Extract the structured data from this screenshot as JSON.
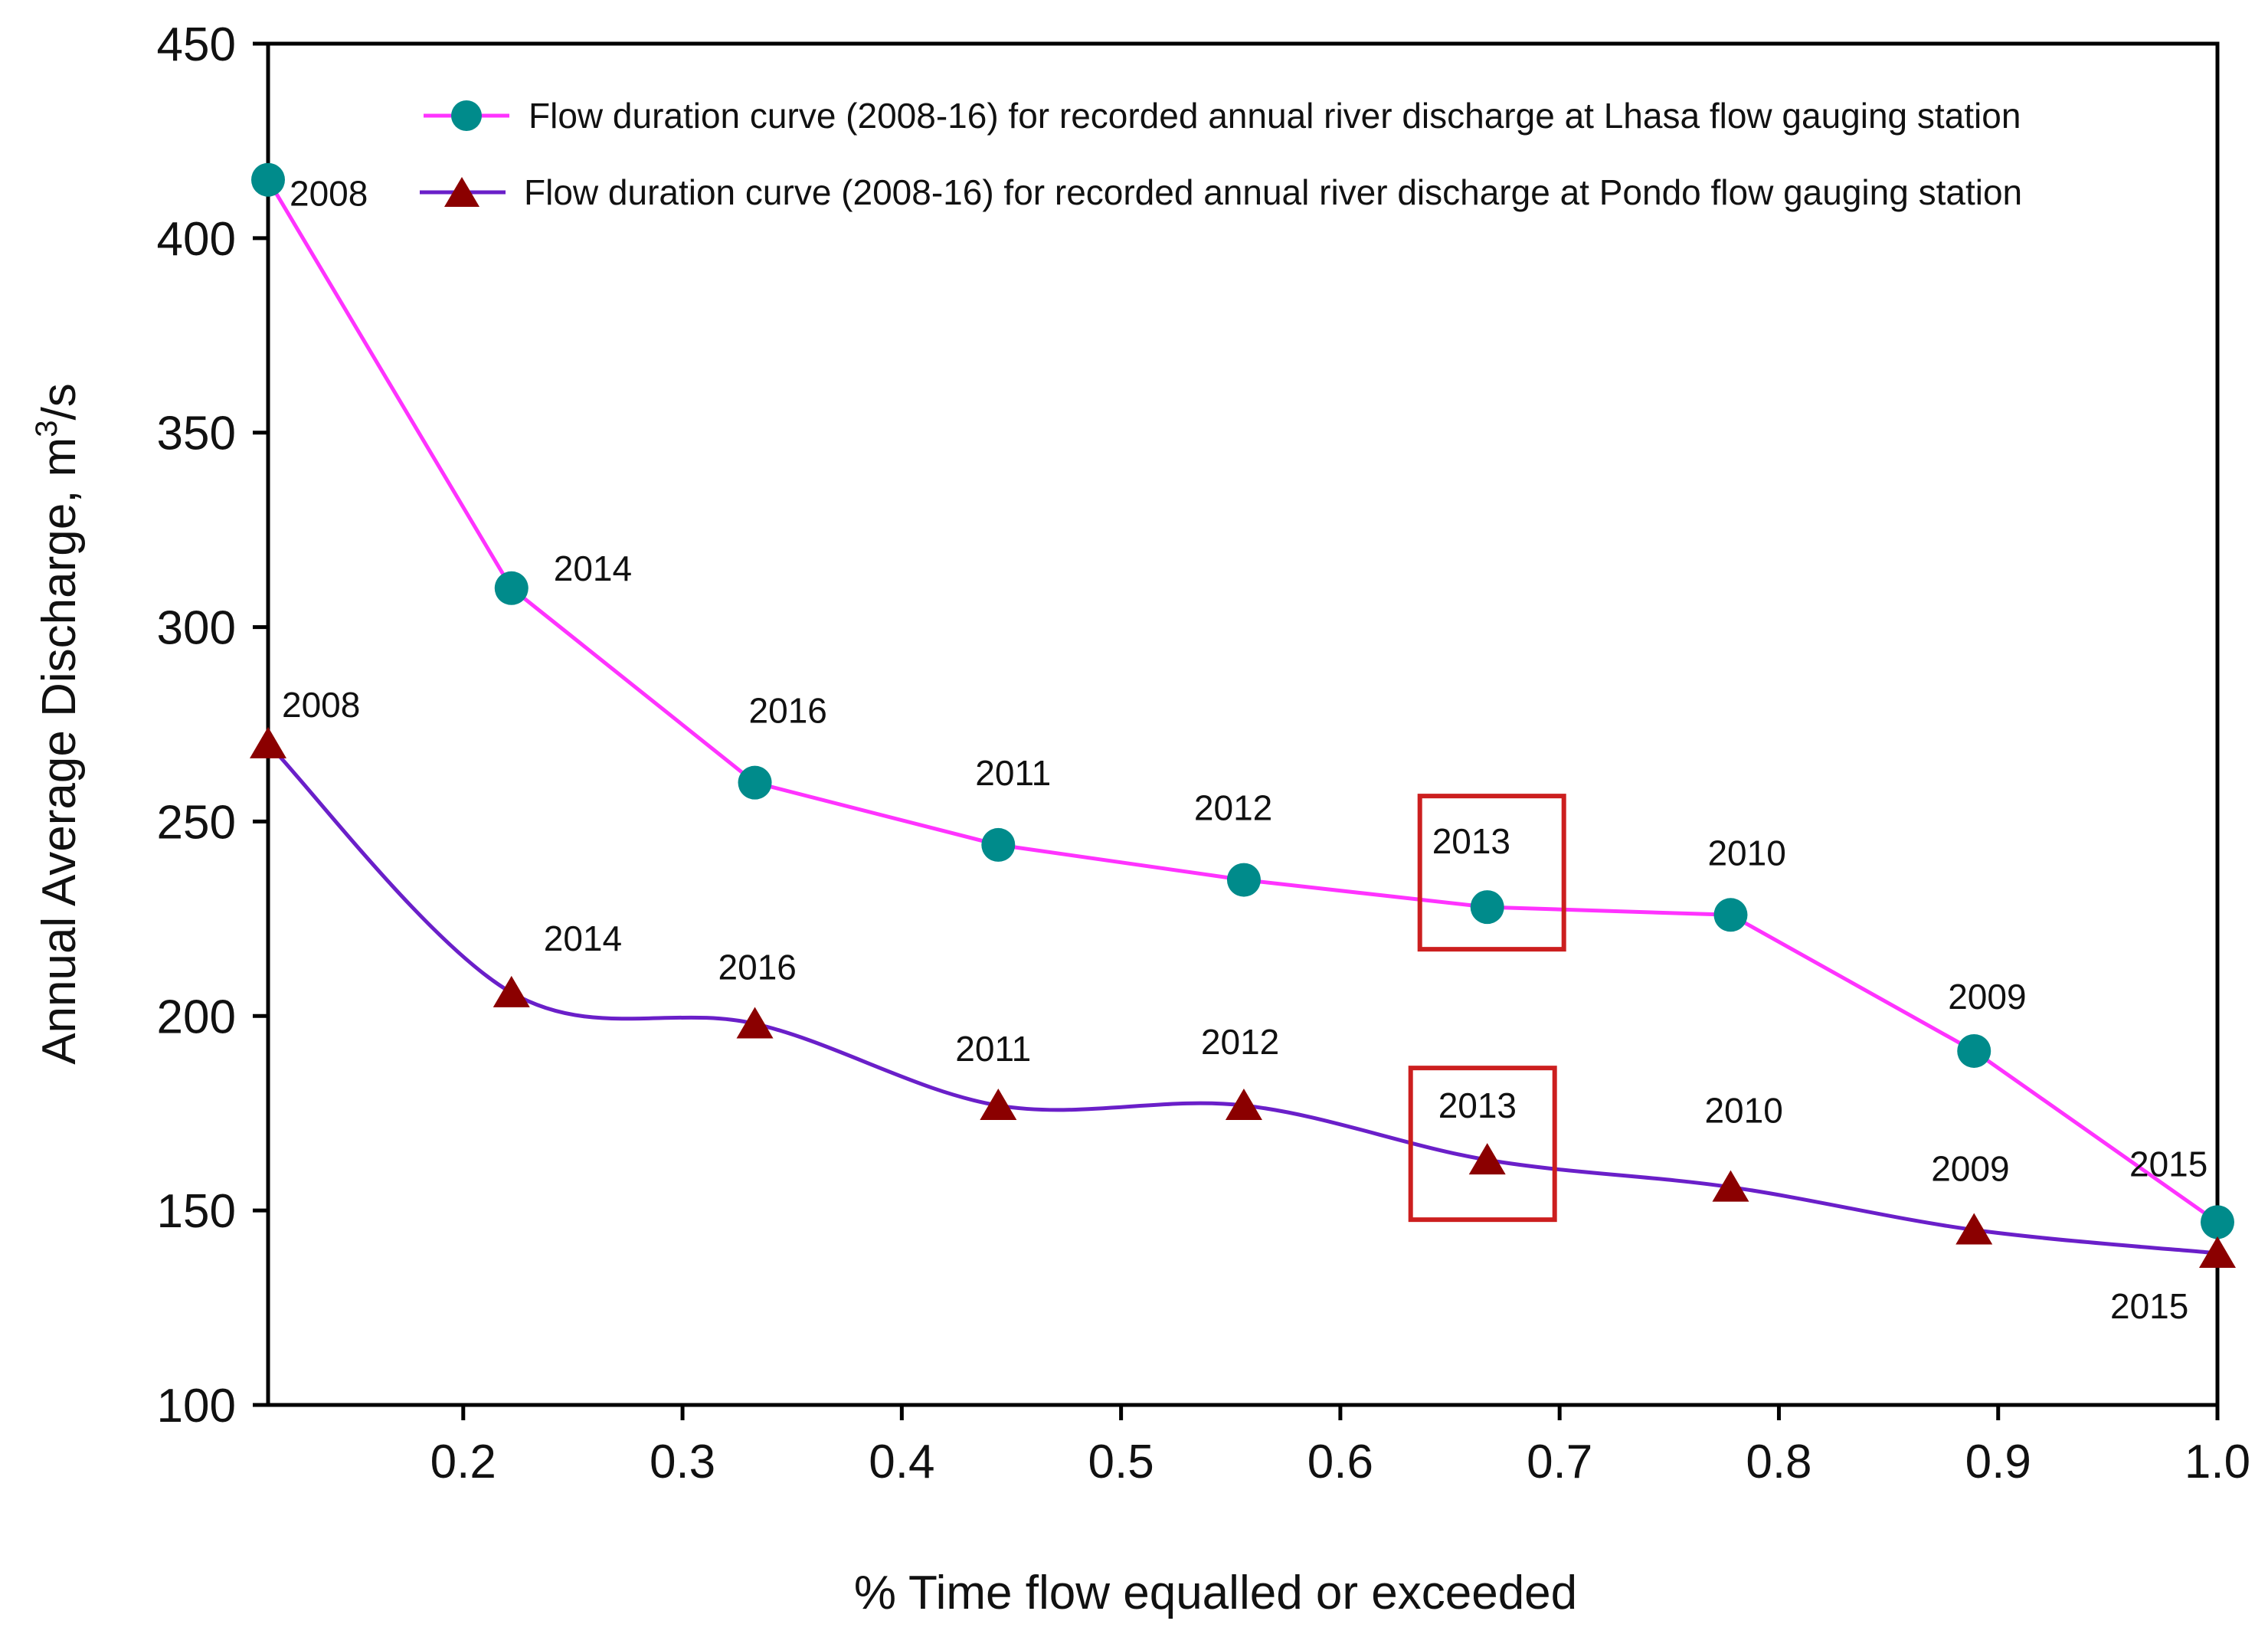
{
  "chart_data": {
    "type": "line",
    "title": "",
    "xlabel": "% Time flow equalled or exceeded",
    "ylabel": "Annual Average Discharge, m³/s",
    "ylabel_main": "Annual Average Discharge, m",
    "ylabel_sup": "3",
    "ylabel_tail": "/s",
    "xlim": [
      0.111,
      1.0
    ],
    "ylim": [
      100,
      450
    ],
    "xticks": [
      "0.2",
      "0.3",
      "0.4",
      "0.5",
      "0.6",
      "0.7",
      "0.8",
      "0.9",
      "1.0"
    ],
    "yticks": [
      "100",
      "150",
      "200",
      "250",
      "300",
      "350",
      "400",
      "450"
    ],
    "grid": false,
    "legend_position": "top",
    "highlight_box_label": "2013",
    "series": [
      {
        "name": "Flow duration curve (2008-16) for recorded annual river discharge at Lhasa flow gauging station",
        "color": "#ff33ff",
        "marker": "circle",
        "marker_color": "#008b8b",
        "x": [
          0.111,
          0.222,
          0.333,
          0.444,
          0.556,
          0.667,
          0.778,
          0.889,
          1.0
        ],
        "values": [
          415,
          310,
          260,
          244,
          235,
          228,
          226,
          191,
          147
        ],
        "labels": [
          "2008",
          "2014",
          "2016",
          "2011",
          "2012",
          "2013",
          "2010",
          "2009",
          "2015"
        ]
      },
      {
        "name": "Flow duration curve (2008-16) for recorded annual river discharge at Pondo flow gauging station",
        "color": "#6a1fc9",
        "marker": "triangle",
        "marker_color": "#8b0000",
        "x": [
          0.111,
          0.222,
          0.333,
          0.444,
          0.556,
          0.667,
          0.778,
          0.889,
          1.0
        ],
        "values": [
          270,
          206,
          198,
          177,
          177,
          163,
          156,
          145,
          139
        ],
        "labels": [
          "2008",
          "2014",
          "2016",
          "2011",
          "2012",
          "2013",
          "2010",
          "2009",
          "2015"
        ]
      }
    ]
  }
}
